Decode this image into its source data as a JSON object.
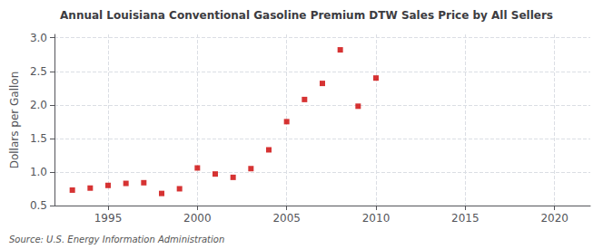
{
  "chart_data": {
    "type": "scatter",
    "title": "Annual Louisiana Conventional Gasoline Premium DTW Sales Price by All Sellers",
    "ylabel": "Dollars per Gallon",
    "annotation": "Source: U.S. Energy Information Administration",
    "x": [
      1993,
      1994,
      1995,
      1996,
      1997,
      1998,
      1999,
      2000,
      2001,
      2002,
      2003,
      2004,
      2005,
      2006,
      2007,
      2008,
      2009,
      2010
    ],
    "values": [
      0.73,
      0.76,
      0.8,
      0.83,
      0.84,
      0.68,
      0.75,
      1.06,
      0.97,
      0.92,
      1.05,
      1.33,
      1.75,
      2.08,
      2.32,
      2.82,
      1.98,
      2.4
    ],
    "color": "#cc0000",
    "marker": "square",
    "xlim": [
      1992,
      2022
    ],
    "xticks": [
      1995,
      2000,
      2005,
      2010,
      2015,
      2020
    ],
    "ylim": [
      0.5,
      3.05
    ],
    "yticks": [
      0.5,
      {
        "value": 1.0,
        "label": "1.0"
      },
      1.5,
      {
        "value": 2.0,
        "label": "2.0"
      },
      2.5,
      {
        "value": 3.0,
        "label": "3.0"
      }
    ],
    "grid": true
  }
}
